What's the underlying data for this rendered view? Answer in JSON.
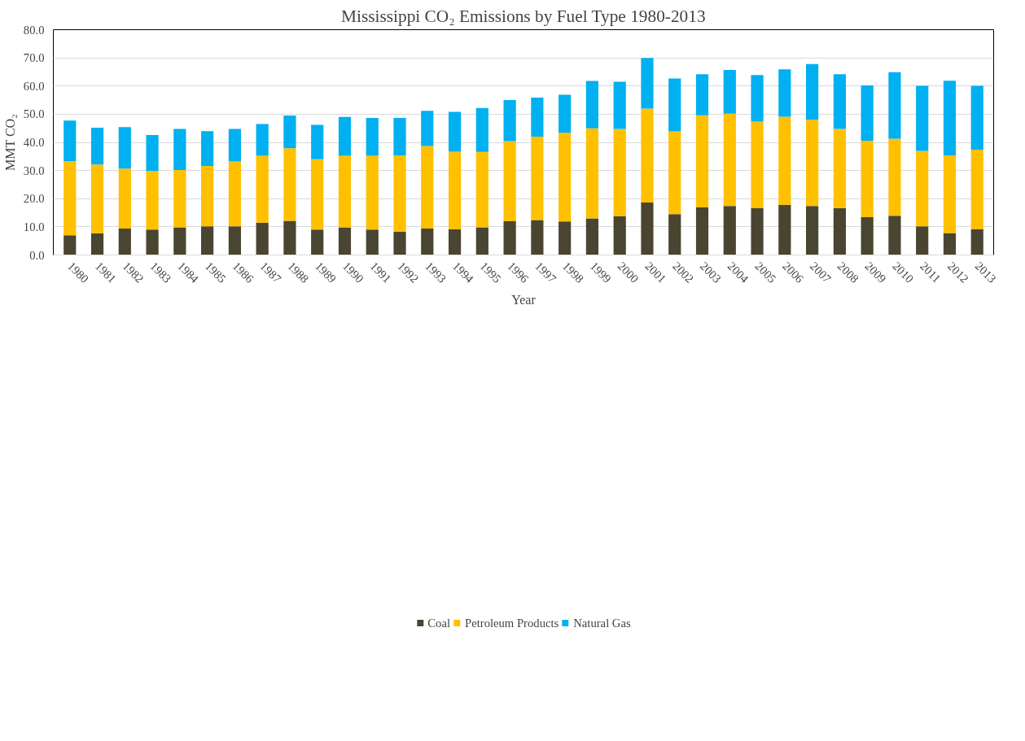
{
  "chart_data": {
    "type": "bar",
    "stacked": true,
    "title": "Mississippi CO₂ Emissions by Fuel Type 1980-2013",
    "xlabel": "Year",
    "ylabel": "MMT CO₂",
    "categories": [
      "1980",
      "1981",
      "1982",
      "1983",
      "1984",
      "1985",
      "1986",
      "1987",
      "1988",
      "1989",
      "1990",
      "1991",
      "1992",
      "1993",
      "1994",
      "1995",
      "1996",
      "1997",
      "1998",
      "1999",
      "2000",
      "2001",
      "2002",
      "2003",
      "2004",
      "2005",
      "2006",
      "2007",
      "2008",
      "2009",
      "2010",
      "2011",
      "2012",
      "2013"
    ],
    "series": [
      {
        "name": "Coal",
        "color": "#4a4530",
        "values": [
          7.0,
          7.7,
          9.4,
          9.0,
          9.8,
          10.2,
          10.2,
          11.5,
          12.1,
          9.0,
          9.8,
          9.0,
          8.2,
          9.4,
          9.1,
          9.8,
          12.0,
          12.4,
          11.9,
          13.0,
          13.8,
          18.6,
          14.5,
          16.9,
          17.4,
          16.6,
          17.8,
          17.4,
          16.7,
          13.4,
          13.9,
          10.2,
          7.8,
          9.1
        ]
      },
      {
        "name": "Petroleum Products",
        "color": "#ffc000",
        "values": [
          26.3,
          24.4,
          21.3,
          20.8,
          20.4,
          21.4,
          23.0,
          23.7,
          25.8,
          25.0,
          25.4,
          26.2,
          27.2,
          29.3,
          27.6,
          26.8,
          28.4,
          29.6,
          31.5,
          32.0,
          31.0,
          33.4,
          29.4,
          32.7,
          32.8,
          30.8,
          31.3,
          30.6,
          28.1,
          27.2,
          27.4,
          26.8,
          27.6,
          28.3
        ]
      },
      {
        "name": "Natural Gas",
        "color": "#00b0f0",
        "values": [
          14.4,
          13.1,
          14.7,
          12.8,
          14.6,
          12.4,
          11.6,
          11.3,
          11.6,
          12.2,
          13.8,
          13.5,
          13.3,
          12.5,
          14.1,
          15.6,
          14.6,
          13.9,
          13.5,
          16.8,
          16.7,
          18.0,
          18.8,
          14.6,
          15.5,
          16.5,
          16.8,
          19.8,
          19.4,
          19.6,
          23.6,
          23.1,
          26.5,
          22.7
        ]
      }
    ],
    "ylim": [
      0,
      80
    ],
    "yticks": [
      {
        "value": 0,
        "label": "0.0"
      },
      {
        "value": 10,
        "label": "10.0"
      },
      {
        "value": 20,
        "label": "20.0"
      },
      {
        "value": 30,
        "label": "30.0"
      },
      {
        "value": 40,
        "label": "40.0"
      },
      {
        "value": 50,
        "label": "50.0"
      },
      {
        "value": 60,
        "label": "60.0"
      },
      {
        "value": 70,
        "label": "70.0"
      },
      {
        "value": 80,
        "label": "80.0"
      }
    ],
    "grid": "y",
    "legend": "bottom"
  }
}
